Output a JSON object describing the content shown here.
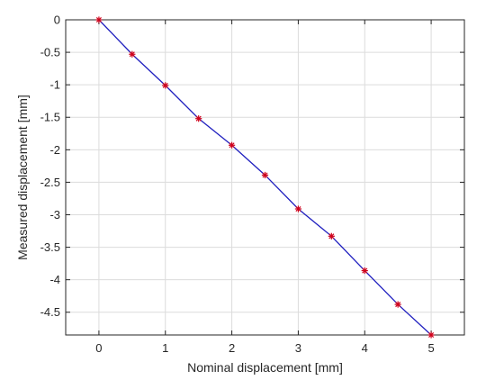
{
  "chart_data": {
    "type": "line",
    "title": "",
    "xlabel": "Nominal displacement [mm]",
    "ylabel": "Measured displacement [mm]",
    "xlim": [
      -0.5,
      5.5
    ],
    "ylim": [
      -4.85,
      0
    ],
    "xticks": [
      0,
      1,
      2,
      3,
      4,
      5
    ],
    "xtick_labels": [
      "0",
      "1",
      "2",
      "3",
      "4",
      "5"
    ],
    "yticks": [
      0,
      -0.5,
      -1,
      -1.5,
      -2,
      -2.5,
      -3,
      -3.5,
      -4,
      -4.5
    ],
    "ytick_labels": [
      "0",
      "-0.5",
      "-1",
      "-1.5",
      "-2",
      "-2.5",
      "-3",
      "-3.5",
      "-4",
      "-4.5"
    ],
    "grid": true,
    "series": [
      {
        "x": [
          0,
          0.5,
          1,
          1.5,
          2,
          2.5,
          3,
          3.5,
          4,
          4.5,
          5
        ],
        "y": [
          0,
          -0.53,
          -1.01,
          -1.52,
          -1.93,
          -2.39,
          -2.91,
          -3.33,
          -3.86,
          -4.38,
          -4.85
        ],
        "line_color": "#1f1fbf",
        "marker": "asterisk",
        "marker_color": "#d0021b"
      }
    ]
  }
}
